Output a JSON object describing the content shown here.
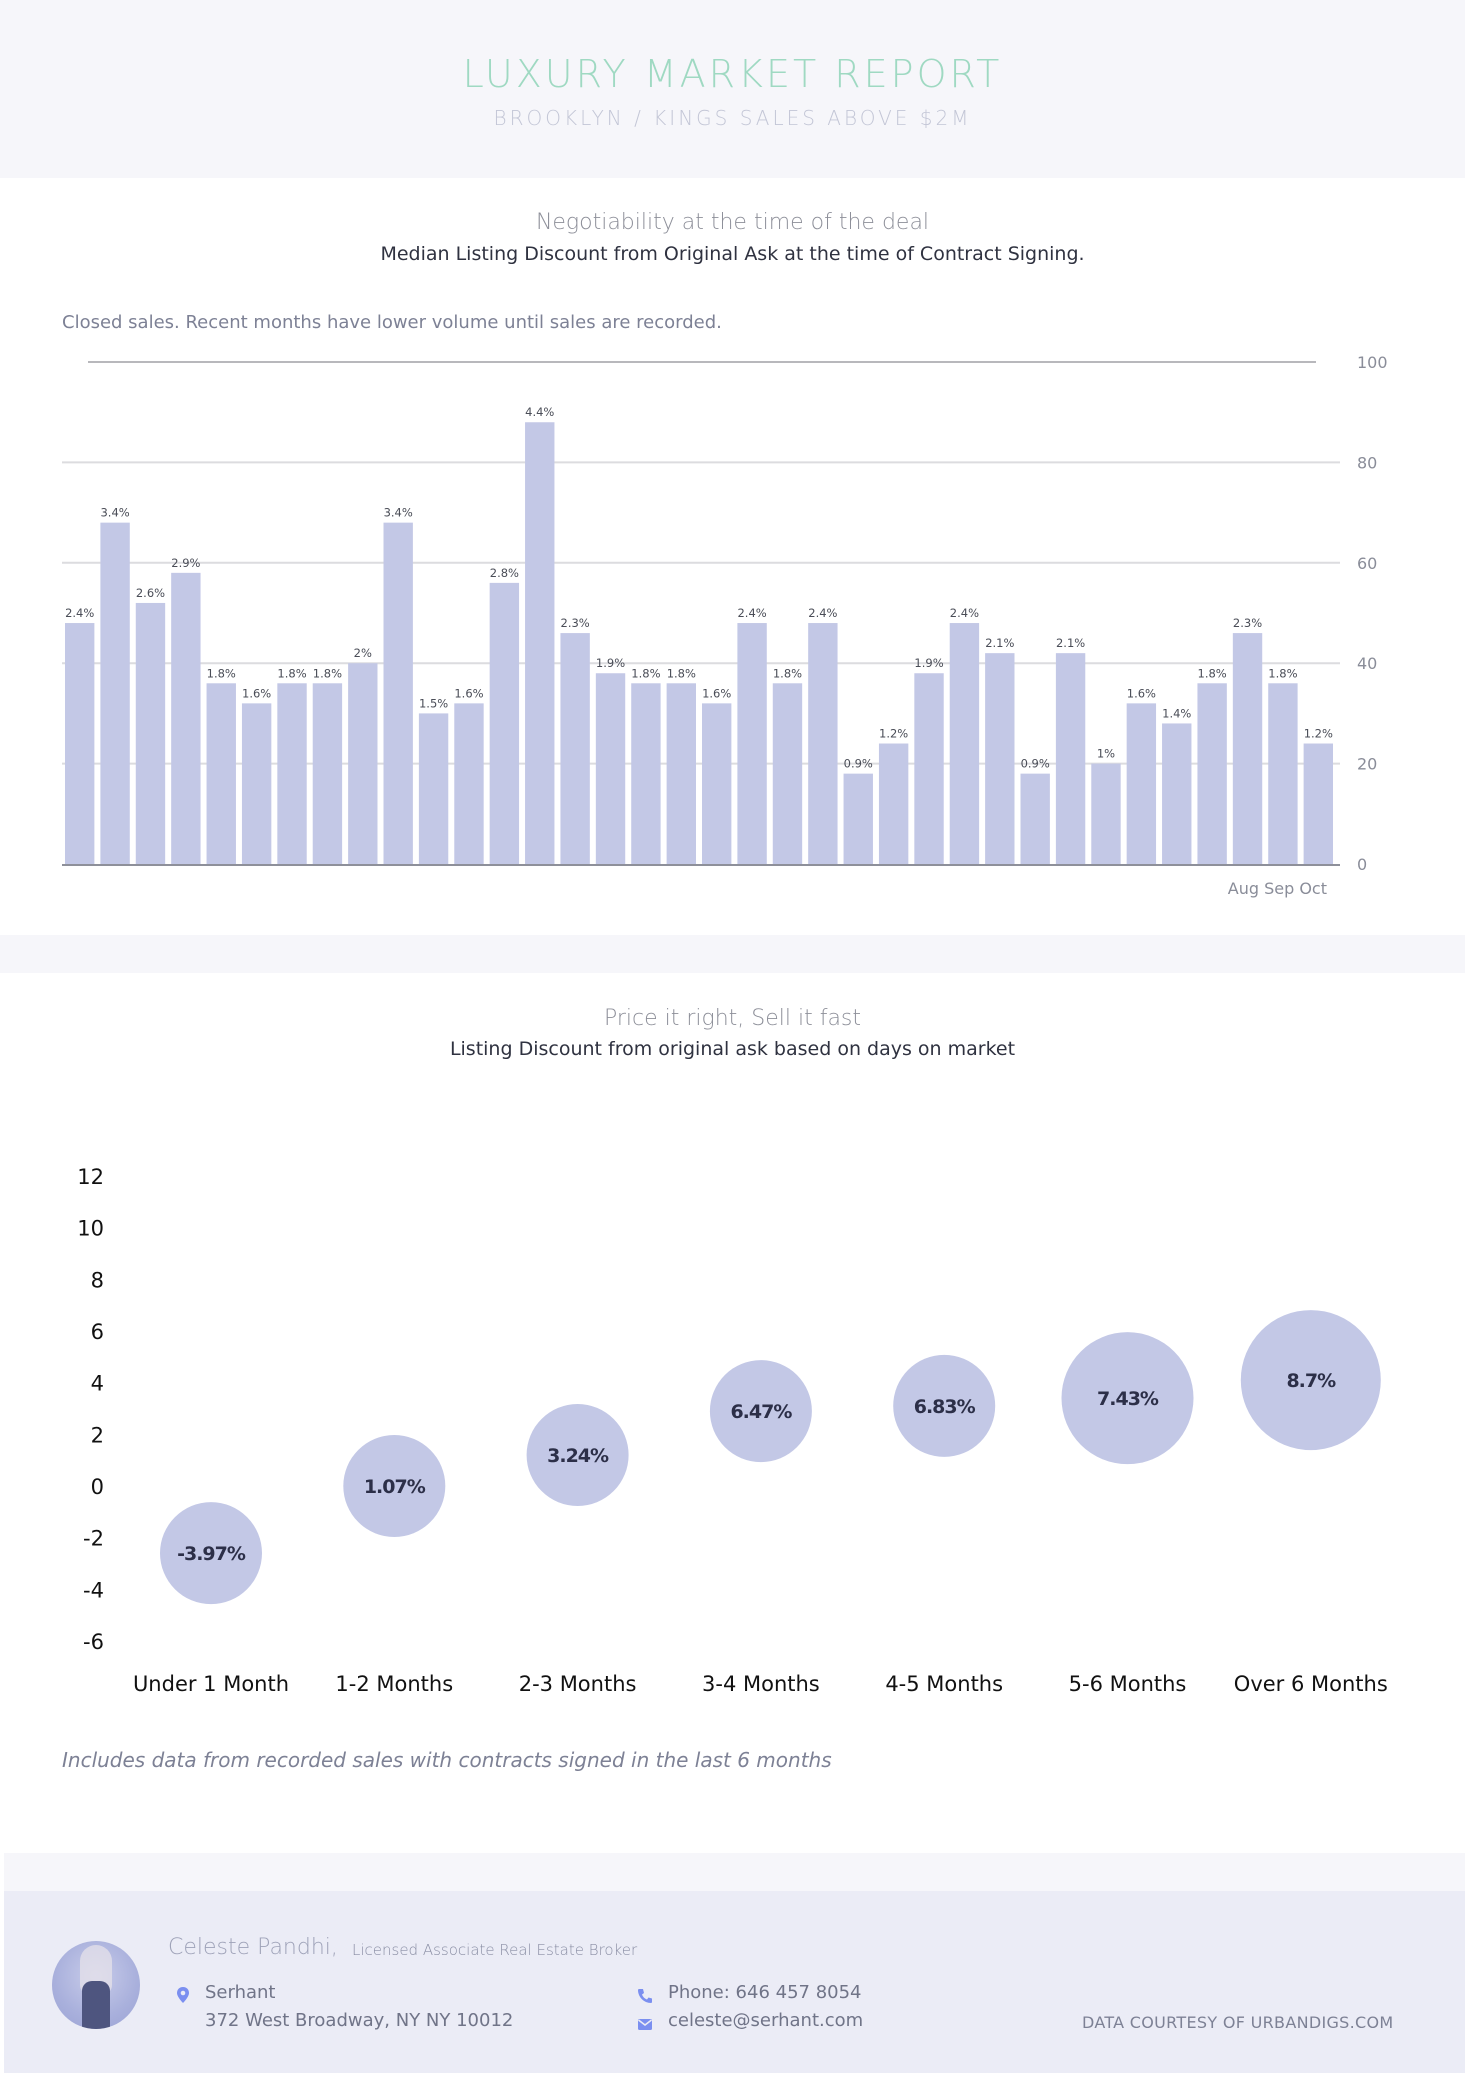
{
  "header": {
    "title": "LUXURY MARKET REPORT",
    "subtitle": "BROOKLYN / KINGS SALES ABOVE $2M"
  },
  "section1": {
    "title": "Negotiability at the time of the deal",
    "subtitle": "Median Listing Discount from Original Ask at the time of Contract Signing.",
    "note": "Closed sales. Recent months have lower volume until sales are recorded."
  },
  "section2": {
    "title": "Price it right, Sell it fast",
    "subtitle": "Listing Discount from original ask based on days on market",
    "footnote": "Includes data from recorded sales with contracts signed in the last 6 months"
  },
  "footer": {
    "agent_name": "Celeste Pandhi,",
    "agent_role": "Licensed Associate Real Estate Broker",
    "company": "Serhant",
    "address": "372 West Broadway, NY NY 10012",
    "phone": "Phone: 646 457 8054",
    "email": "celeste@serhant.com",
    "courtesy": "DATA COURTESY OF URBANDIGS.COM",
    "icons": {
      "location": "map-pin-icon",
      "phone": "phone-icon",
      "email": "envelope-icon"
    }
  },
  "colors": {
    "bar": "#c3c8e6",
    "bubble": "#c3c8e6",
    "title_accent": "#9fd9c2",
    "icon": "#7b8ff0"
  },
  "chart_data": [
    {
      "type": "bar",
      "title": "Negotiability at the time of the deal",
      "subtitle": "Median Listing Discount from Original Ask at the time of Contract Signing.",
      "y_axis_position": "right",
      "ylim": [
        0,
        100
      ],
      "yticks": [
        0,
        20,
        40,
        60,
        80,
        100
      ],
      "grid": true,
      "x_tick_labels_visible": [
        "Aug",
        "Sep",
        "Oct"
      ],
      "x_tick_label_text": "Aug Sep Oct",
      "values": [
        48,
        68,
        52,
        58,
        36,
        32,
        36,
        36,
        40,
        68,
        30,
        32,
        56,
        88,
        46,
        38,
        36,
        36,
        32,
        48,
        36,
        48,
        18,
        24,
        38,
        48,
        42,
        18,
        42,
        20,
        32,
        28,
        36,
        46,
        36,
        24
      ],
      "labels": [
        "2.4%",
        "3.4%",
        "2.6%",
        "2.9%",
        "1.8%",
        "1.6%",
        "1.8%",
        "1.8%",
        "2%",
        "3.4%",
        "1.5%",
        "1.6%",
        "2.8%",
        "4.4%",
        "2.3%",
        "1.9%",
        "1.8%",
        "1.8%",
        "1.6%",
        "2.4%",
        "1.8%",
        "2.4%",
        "0.9%",
        "1.2%",
        "1.9%",
        "2.4%",
        "2.1%",
        "0.9%",
        "2.1%",
        "1%",
        "1.6%",
        "1.4%",
        "1.8%",
        "2.3%",
        "1.8%",
        "1.2%"
      ]
    },
    {
      "type": "scatter",
      "subtype": "bubble",
      "title": "Price it right, Sell it fast",
      "subtitle": "Listing Discount from original ask based on days on market",
      "categories": [
        "Under 1 Month",
        "1-2 Months",
        "2-3 Months",
        "3-4 Months",
        "4-5 Months",
        "5-6 Months",
        "Over 6 Months"
      ],
      "values": [
        -3.97,
        1.07,
        3.24,
        6.47,
        6.83,
        7.43,
        8.7
      ],
      "labels": [
        "-3.97%",
        "1.07%",
        "3.24%",
        "6.47%",
        "6.83%",
        "7.43%",
        "8.7%"
      ],
      "y_positions": [
        -2.6,
        0,
        1.2,
        2.9,
        3.1,
        3.4,
        4.1
      ],
      "bubble_size_rank": [
        2,
        2,
        2,
        2,
        2,
        3,
        3
      ],
      "ylim": [
        -6,
        12
      ],
      "yticks": [
        12,
        10,
        8,
        6,
        4,
        2,
        0,
        -2,
        -4,
        -6
      ],
      "grid": false
    }
  ]
}
